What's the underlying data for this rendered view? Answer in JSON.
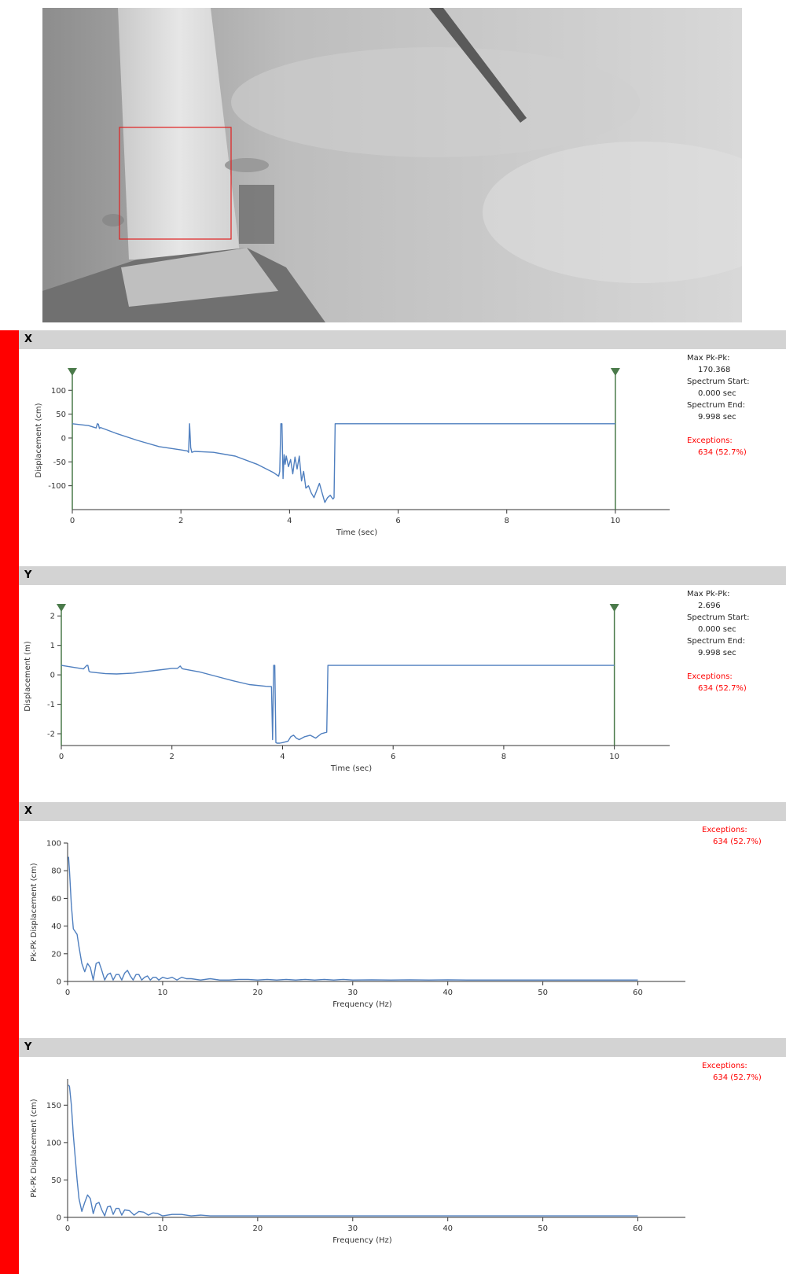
{
  "camera": {
    "roi_color": "#e02020"
  },
  "panels": [
    {
      "id": "x-time",
      "title": "X",
      "stats": [
        {
          "label": "Max Pk-Pk:",
          "value": "170.368"
        },
        {
          "label": "Spectrum Start:",
          "value": "0.000 sec"
        },
        {
          "label": "Spectrum End:",
          "value": "9.998 sec"
        }
      ],
      "exceptions": {
        "label": "Exceptions:",
        "value": "634 (52.7%)"
      }
    },
    {
      "id": "y-time",
      "title": "Y",
      "stats": [
        {
          "label": "Max Pk-Pk:",
          "value": "2.696"
        },
        {
          "label": "Spectrum Start:",
          "value": "0.000 sec"
        },
        {
          "label": "Spectrum End:",
          "value": "9.998 sec"
        }
      ],
      "exceptions": {
        "label": "Exceptions:",
        "value": "634 (52.7%)"
      }
    },
    {
      "id": "x-freq",
      "title": "X",
      "exceptions": {
        "label": "Exceptions:",
        "value": "634 (52.7%)"
      }
    },
    {
      "id": "y-freq",
      "title": "Y",
      "exceptions": {
        "label": "Exceptions:",
        "value": "634 (52.7%)"
      }
    }
  ],
  "colors": {
    "line": "#4f7fbf",
    "marker": "#4a7a4a",
    "accent": "#ff0000",
    "header": "#d3d3d3"
  },
  "chart_data": [
    {
      "type": "line",
      "xlabel": "Time (sec)",
      "ylabel": "Displacement (cm)",
      "xlim": [
        0,
        11
      ],
      "ylim": [
        -150,
        140
      ],
      "xticks": [
        0,
        2,
        4,
        6,
        8,
        10
      ],
      "yticks": [
        100,
        50,
        0,
        -50,
        -100
      ],
      "markers": [
        0,
        10
      ],
      "series": [
        {
          "x": [
            0,
            0.3,
            0.44,
            0.46,
            0.48,
            0.5,
            0.52,
            0.8,
            1.2,
            1.6,
            2.0,
            2.12,
            2.14,
            2.16,
            2.18,
            2.2,
            2.25,
            2.6,
            3.0,
            3.4,
            3.7,
            3.8,
            3.82,
            3.84,
            3.86,
            3.88,
            3.9,
            3.92,
            3.94,
            3.98,
            4.02,
            4.06,
            4.1,
            4.14,
            4.18,
            4.22,
            4.26,
            4.3,
            4.35,
            4.4,
            4.45,
            4.5,
            4.55,
            4.6,
            4.65,
            4.7,
            4.75,
            4.8,
            4.82,
            4.84,
            4.86,
            10
          ],
          "y": [
            30,
            26,
            21,
            30,
            29,
            20,
            22,
            10,
            -5,
            -18,
            -25,
            -27,
            -30,
            30,
            -20,
            -30,
            -28,
            -30,
            -38,
            -55,
            -72,
            -80,
            -70,
            30,
            30,
            -85,
            -35,
            -55,
            -38,
            -60,
            -45,
            -75,
            -40,
            -65,
            -38,
            -90,
            -70,
            -105,
            -100,
            -115,
            -125,
            -110,
            -95,
            -115,
            -135,
            -125,
            -120,
            -128,
            -125,
            30,
            30,
            30
          ]
        }
      ]
    },
    {
      "type": "line",
      "xlabel": "Time (sec)",
      "ylabel": "Displacement (m)",
      "xlim": [
        0,
        11
      ],
      "ylim": [
        -2.4,
        2.3
      ],
      "xticks": [
        0,
        2,
        4,
        6,
        8,
        10
      ],
      "yticks": [
        2,
        1,
        0,
        -1,
        -2
      ],
      "markers": [
        0,
        10
      ],
      "series": [
        {
          "x": [
            0,
            0.4,
            0.46,
            0.48,
            0.5,
            0.52,
            0.8,
            1.0,
            1.3,
            1.7,
            2.0,
            2.1,
            2.15,
            2.18,
            2.2,
            2.5,
            2.8,
            3.1,
            3.4,
            3.7,
            3.8,
            3.82,
            3.84,
            3.86,
            3.88,
            3.9,
            3.95,
            4.0,
            4.1,
            4.15,
            4.2,
            4.25,
            4.3,
            4.4,
            4.5,
            4.6,
            4.7,
            4.8,
            4.82,
            4.84,
            10
          ],
          "y": [
            0.32,
            0.2,
            0.32,
            0.32,
            0.13,
            0.1,
            0.04,
            0.03,
            0.06,
            0.15,
            0.22,
            0.22,
            0.3,
            0.22,
            0.2,
            0.1,
            -0.05,
            -0.2,
            -0.33,
            -0.39,
            -0.4,
            -2.2,
            0.32,
            0.32,
            -2.3,
            -2.32,
            -2.32,
            -2.3,
            -2.25,
            -2.1,
            -2.05,
            -2.15,
            -2.2,
            -2.1,
            -2.05,
            -2.15,
            -2.0,
            -1.95,
            0.32,
            0.32,
            0.32
          ]
        }
      ]
    },
    {
      "type": "line",
      "xlabel": "Frequency (Hz)",
      "ylabel": "Pk-Pk Displacement (cm)",
      "xlim": [
        0,
        65
      ],
      "ylim": [
        0,
        100
      ],
      "xticks": [
        0,
        10,
        20,
        30,
        40,
        50,
        60
      ],
      "yticks": [
        100,
        80,
        60,
        40,
        20,
        0
      ],
      "series": [
        {
          "x": [
            0.1,
            0.2,
            0.4,
            0.6,
            0.8,
            1.0,
            1.2,
            1.5,
            1.8,
            2.1,
            2.4,
            2.7,
            3.0,
            3.3,
            3.6,
            3.9,
            4.2,
            4.5,
            4.8,
            5.1,
            5.4,
            5.7,
            6.0,
            6.3,
            6.6,
            6.9,
            7.2,
            7.5,
            7.8,
            8.1,
            8.4,
            8.7,
            9.0,
            9.3,
            9.6,
            10.0,
            10.5,
            11.0,
            11.5,
            12.0,
            12.5,
            13.0,
            14,
            15,
            16,
            17,
            18,
            19,
            20,
            21,
            22,
            23,
            24,
            25,
            26,
            27,
            28,
            29,
            30,
            32,
            34,
            36,
            38,
            40,
            42,
            44,
            46,
            48,
            50,
            52,
            54,
            56,
            58,
            60
          ],
          "y": [
            90,
            80,
            55,
            38,
            36,
            34,
            25,
            13,
            7,
            13,
            10,
            1,
            13,
            14,
            8,
            1,
            5,
            6,
            1,
            5,
            5,
            1,
            6,
            8,
            4,
            1,
            5,
            5,
            1,
            3,
            4,
            1,
            3,
            3,
            1,
            3,
            2,
            3,
            1,
            3,
            2,
            2,
            1,
            2,
            1,
            1,
            1.5,
            1.5,
            1,
            1.5,
            1,
            1.5,
            1,
            1.5,
            1,
            1.5,
            1,
            1.5,
            1,
            1.2,
            1,
            1.2,
            1,
            1.2,
            1,
            1,
            1,
            1,
            1,
            1,
            1,
            1,
            1,
            1
          ]
        }
      ]
    },
    {
      "type": "line",
      "xlabel": "Frequency (Hz)",
      "ylabel": "Pk-Pk Displacement (cm)",
      "xlim": [
        0,
        65
      ],
      "ylim": [
        0,
        185
      ],
      "xticks": [
        0,
        10,
        20,
        30,
        40,
        50,
        60
      ],
      "yticks": [
        150,
        100,
        50,
        0
      ],
      "series": [
        {
          "x": [
            0.1,
            0.2,
            0.4,
            0.6,
            0.8,
            1.0,
            1.2,
            1.5,
            1.8,
            2.1,
            2.4,
            2.7,
            3.0,
            3.3,
            3.6,
            3.9,
            4.2,
            4.5,
            4.8,
            5.1,
            5.4,
            5.7,
            6.0,
            6.5,
            7.0,
            7.5,
            8.0,
            8.5,
            9.0,
            9.5,
            10,
            11,
            12,
            13,
            14,
            15,
            16,
            18,
            20,
            22,
            24,
            26,
            28,
            30,
            34,
            38,
            42,
            46,
            50,
            54,
            58,
            60
          ],
          "y": [
            177,
            175,
            150,
            110,
            80,
            50,
            25,
            8,
            20,
            30,
            25,
            5,
            18,
            20,
            10,
            2,
            14,
            15,
            4,
            12,
            12,
            3,
            10,
            9,
            3,
            8,
            7,
            3,
            6,
            5,
            2,
            4,
            4,
            2,
            3,
            2,
            2,
            2,
            2,
            2,
            2,
            2,
            2,
            2,
            2,
            2,
            2,
            2,
            2,
            2,
            2,
            2
          ]
        }
      ]
    }
  ]
}
